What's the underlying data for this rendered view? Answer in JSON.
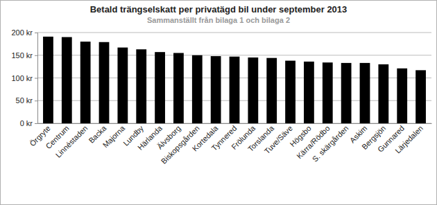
{
  "chart_data": {
    "type": "bar",
    "title": "Betald trängselskatt per privatägd bil under september 2013",
    "subtitle": "Sammanställt från bilaga 1 och bilaga 2",
    "categories": [
      "Örgryte",
      "Centrum",
      "Linnéstaden",
      "Backa",
      "Majorna",
      "Lundby",
      "Härlanda",
      "Älvsborg",
      "Biskopsgården",
      "Kortedala",
      "Tynnered",
      "Frölunda",
      "Torslanda",
      "Tuve/Säve",
      "Högsbo",
      "Kärra/Rödbo",
      "S. skärgården",
      "Askim",
      "Bergsjön",
      "Gunnared",
      "Lärjedalen"
    ],
    "values": [
      191,
      190,
      180,
      179,
      167,
      163,
      157,
      155,
      150,
      148,
      147,
      145,
      144,
      138,
      136,
      134,
      133,
      133,
      130,
      121,
      117
    ],
    "color": "#000000",
    "ylim": [
      0,
      200
    ],
    "yticks": [
      {
        "value": 0,
        "label": "0 kr"
      },
      {
        "value": 50,
        "label": "50 kr"
      },
      {
        "value": 100,
        "label": "100 kr"
      },
      {
        "value": 150,
        "label": "150 kr"
      },
      {
        "value": 200,
        "label": "200 kr"
      }
    ],
    "grid": true
  }
}
